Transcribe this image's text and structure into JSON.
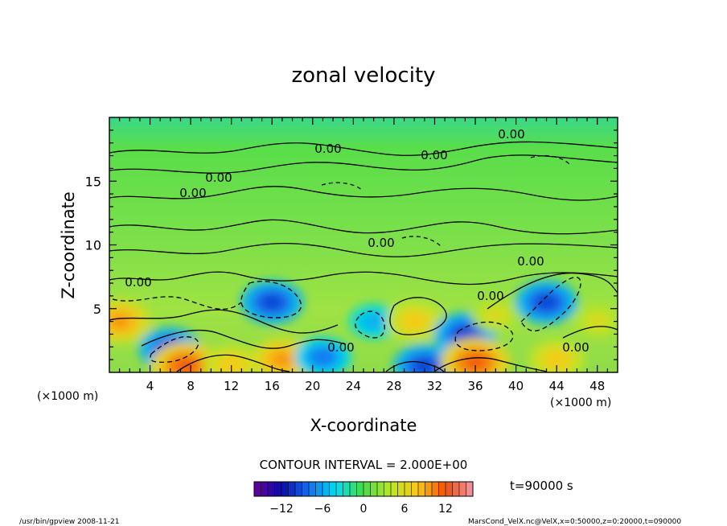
{
  "chart_data": {
    "type": "heatmap",
    "title": "zonal velocity",
    "xlabel": "X-coordinate",
    "ylabel": "Z-coordinate",
    "x_unit_left": "(×1000 m)",
    "x_unit_right": "(×1000 m)",
    "xlim": [
      0,
      50
    ],
    "ylim": [
      0,
      20
    ],
    "x_ticks": [
      4,
      8,
      12,
      16,
      20,
      24,
      28,
      32,
      36,
      40,
      44,
      48
    ],
    "y_ticks": [
      5,
      10,
      15
    ],
    "contour_interval_text": "CONTOUR INTERVAL = 2.000E+00",
    "time_label": "t=90000 s",
    "colorbar": {
      "ticks": [
        -12,
        -6,
        0,
        6,
        12
      ],
      "min": -16,
      "max": 16
    },
    "contour_labels": [
      "0.00",
      "0.00",
      "0.00",
      "0.00",
      "0.00",
      "0.00",
      "0.00",
      "0.00",
      "0.00",
      "0.00",
      "0.00"
    ],
    "features": [
      {
        "x": 1.0,
        "z": 4.0,
        "value": 10
      },
      {
        "x": 6.0,
        "z": 1.8,
        "value": -10
      },
      {
        "x": 7.5,
        "z": 0.5,
        "value": 12
      },
      {
        "x": 12.0,
        "z": 0.6,
        "value": 8
      },
      {
        "x": 16.0,
        "z": 5.5,
        "value": -10
      },
      {
        "x": 17.0,
        "z": 1.0,
        "value": 10
      },
      {
        "x": 21.0,
        "z": 1.2,
        "value": -8
      },
      {
        "x": 26.0,
        "z": 4.0,
        "value": -6
      },
      {
        "x": 30.0,
        "z": 4.0,
        "value": 8
      },
      {
        "x": 31.0,
        "z": 0.5,
        "value": -10
      },
      {
        "x": 35.0,
        "z": 3.0,
        "value": -10
      },
      {
        "x": 36.0,
        "z": 0.8,
        "value": 12
      },
      {
        "x": 38.0,
        "z": 4.5,
        "value": 6
      },
      {
        "x": 43.0,
        "z": 5.5,
        "value": -10
      },
      {
        "x": 44.0,
        "z": 1.0,
        "value": 8
      },
      {
        "x": 48.0,
        "z": 4.0,
        "value": 6
      }
    ]
  },
  "footer": {
    "left": "/usr/bin/gpview  2008-11-21",
    "right": "MarsCond_VelX.nc@VelX,x=0:50000,z=0:20000,t=090000"
  }
}
